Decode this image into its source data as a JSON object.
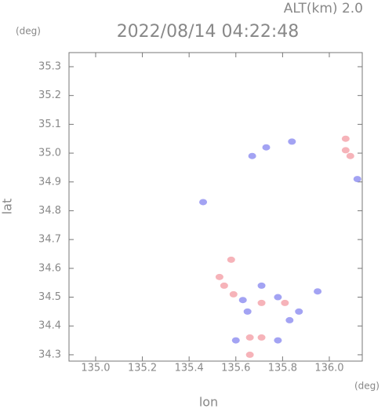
{
  "chart_data": {
    "type": "scatter",
    "title": "2022/08/14 04:22:48",
    "subtitle": "ALT(km) 2.0",
    "xlabel": "lon",
    "ylabel": "lat",
    "xunit": "(deg)",
    "yunit": "(deg)",
    "xlim": [
      134.886,
      136.141
    ],
    "ylim": [
      34.278,
      35.349
    ],
    "xticks": [
      {
        "value": 135.0,
        "label": "135.0"
      },
      135.2,
      135.4,
      135.6,
      135.8,
      {
        "value": 136.0,
        "label": "136.0"
      }
    ],
    "yticks": [
      35.3,
      35.2,
      35.1,
      {
        "value": 35.0,
        "label": "35.0"
      },
      34.9,
      34.8,
      34.7,
      34.6,
      34.5,
      34.4,
      34.3
    ],
    "series": [
      {
        "color": "#f4a0a8",
        "x": [
          136.07,
          136.09,
          136.07,
          135.58,
          135.53,
          135.59,
          135.55,
          135.71,
          135.81,
          135.66,
          135.71,
          135.66
        ],
        "y": [
          35.01,
          34.99,
          35.05,
          34.63,
          34.57,
          34.51,
          34.54,
          34.48,
          34.48,
          34.36,
          34.36,
          34.3
        ]
      },
      {
        "color": "#8c8cf0",
        "x": [
          136.12,
          135.67,
          135.73,
          135.84,
          135.63,
          135.71,
          135.78,
          135.83,
          135.87,
          135.95,
          135.65,
          135.78,
          135.6,
          135.46
        ],
        "y": [
          34.91,
          34.99,
          35.02,
          35.04,
          34.49,
          34.54,
          34.5,
          34.42,
          34.45,
          34.52,
          34.45,
          34.35,
          34.35,
          34.83
        ]
      }
    ]
  }
}
